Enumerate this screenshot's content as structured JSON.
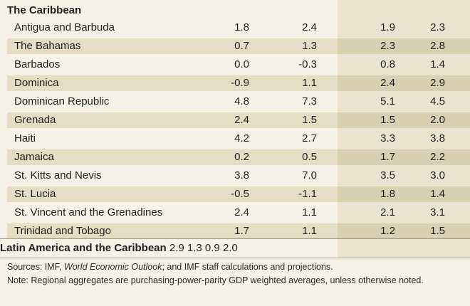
{
  "section_title": "The Caribbean",
  "rows": [
    {
      "country": "Antigua and Barbuda",
      "v1": "1.8",
      "v2": "2.4",
      "v3": "1.9",
      "v4": "2.3"
    },
    {
      "country": "The Bahamas",
      "v1": "0.7",
      "v2": "1.3",
      "v3": "2.3",
      "v4": "2.8"
    },
    {
      "country": "Barbados",
      "v1": "0.0",
      "v2": "-0.3",
      "v3": "0.8",
      "v4": "1.4"
    },
    {
      "country": "Dominica",
      "v1": "-0.9",
      "v2": "1.1",
      "v3": "2.4",
      "v4": "2.9"
    },
    {
      "country": "Dominican Republic",
      "v1": "4.8",
      "v2": "7.3",
      "v3": "5.1",
      "v4": "4.5"
    },
    {
      "country": "Grenada",
      "v1": "2.4",
      "v2": "1.5",
      "v3": "1.5",
      "v4": "2.0"
    },
    {
      "country": "Haiti",
      "v1": "4.2",
      "v2": "2.7",
      "v3": "3.3",
      "v4": "3.8"
    },
    {
      "country": "Jamaica",
      "v1": "0.2",
      "v2": "0.5",
      "v3": "1.7",
      "v4": "2.2"
    },
    {
      "country": "St. Kitts and Nevis",
      "v1": "3.8",
      "v2": "7.0",
      "v3": "3.5",
      "v4": "3.0"
    },
    {
      "country": "St. Lucia",
      "v1": "-0.5",
      "v2": "-1.1",
      "v3": "1.8",
      "v4": "1.4"
    },
    {
      "country": "St. Vincent and the Grenadines",
      "v1": "2.4",
      "v2": "1.1",
      "v3": "2.1",
      "v4": "3.1"
    },
    {
      "country": "Trinidad and Tobago",
      "v1": "1.7",
      "v2": "1.1",
      "v3": "1.2",
      "v4": "1.5"
    }
  ],
  "total": {
    "country": "Latin America and the Caribbean",
    "v1": "2.9",
    "v2": "1.3",
    "v3": "0.9",
    "v4": "2.0"
  },
  "notes": {
    "sources_prefix": "Sources: IMF, ",
    "sources_italic": "World Economic Outlook",
    "sources_suffix": "; and IMF staff calculations and projections.",
    "note": "Note: Regional aggregates are purchasing-power-parity GDP weighted averages, unless otherwise noted."
  }
}
